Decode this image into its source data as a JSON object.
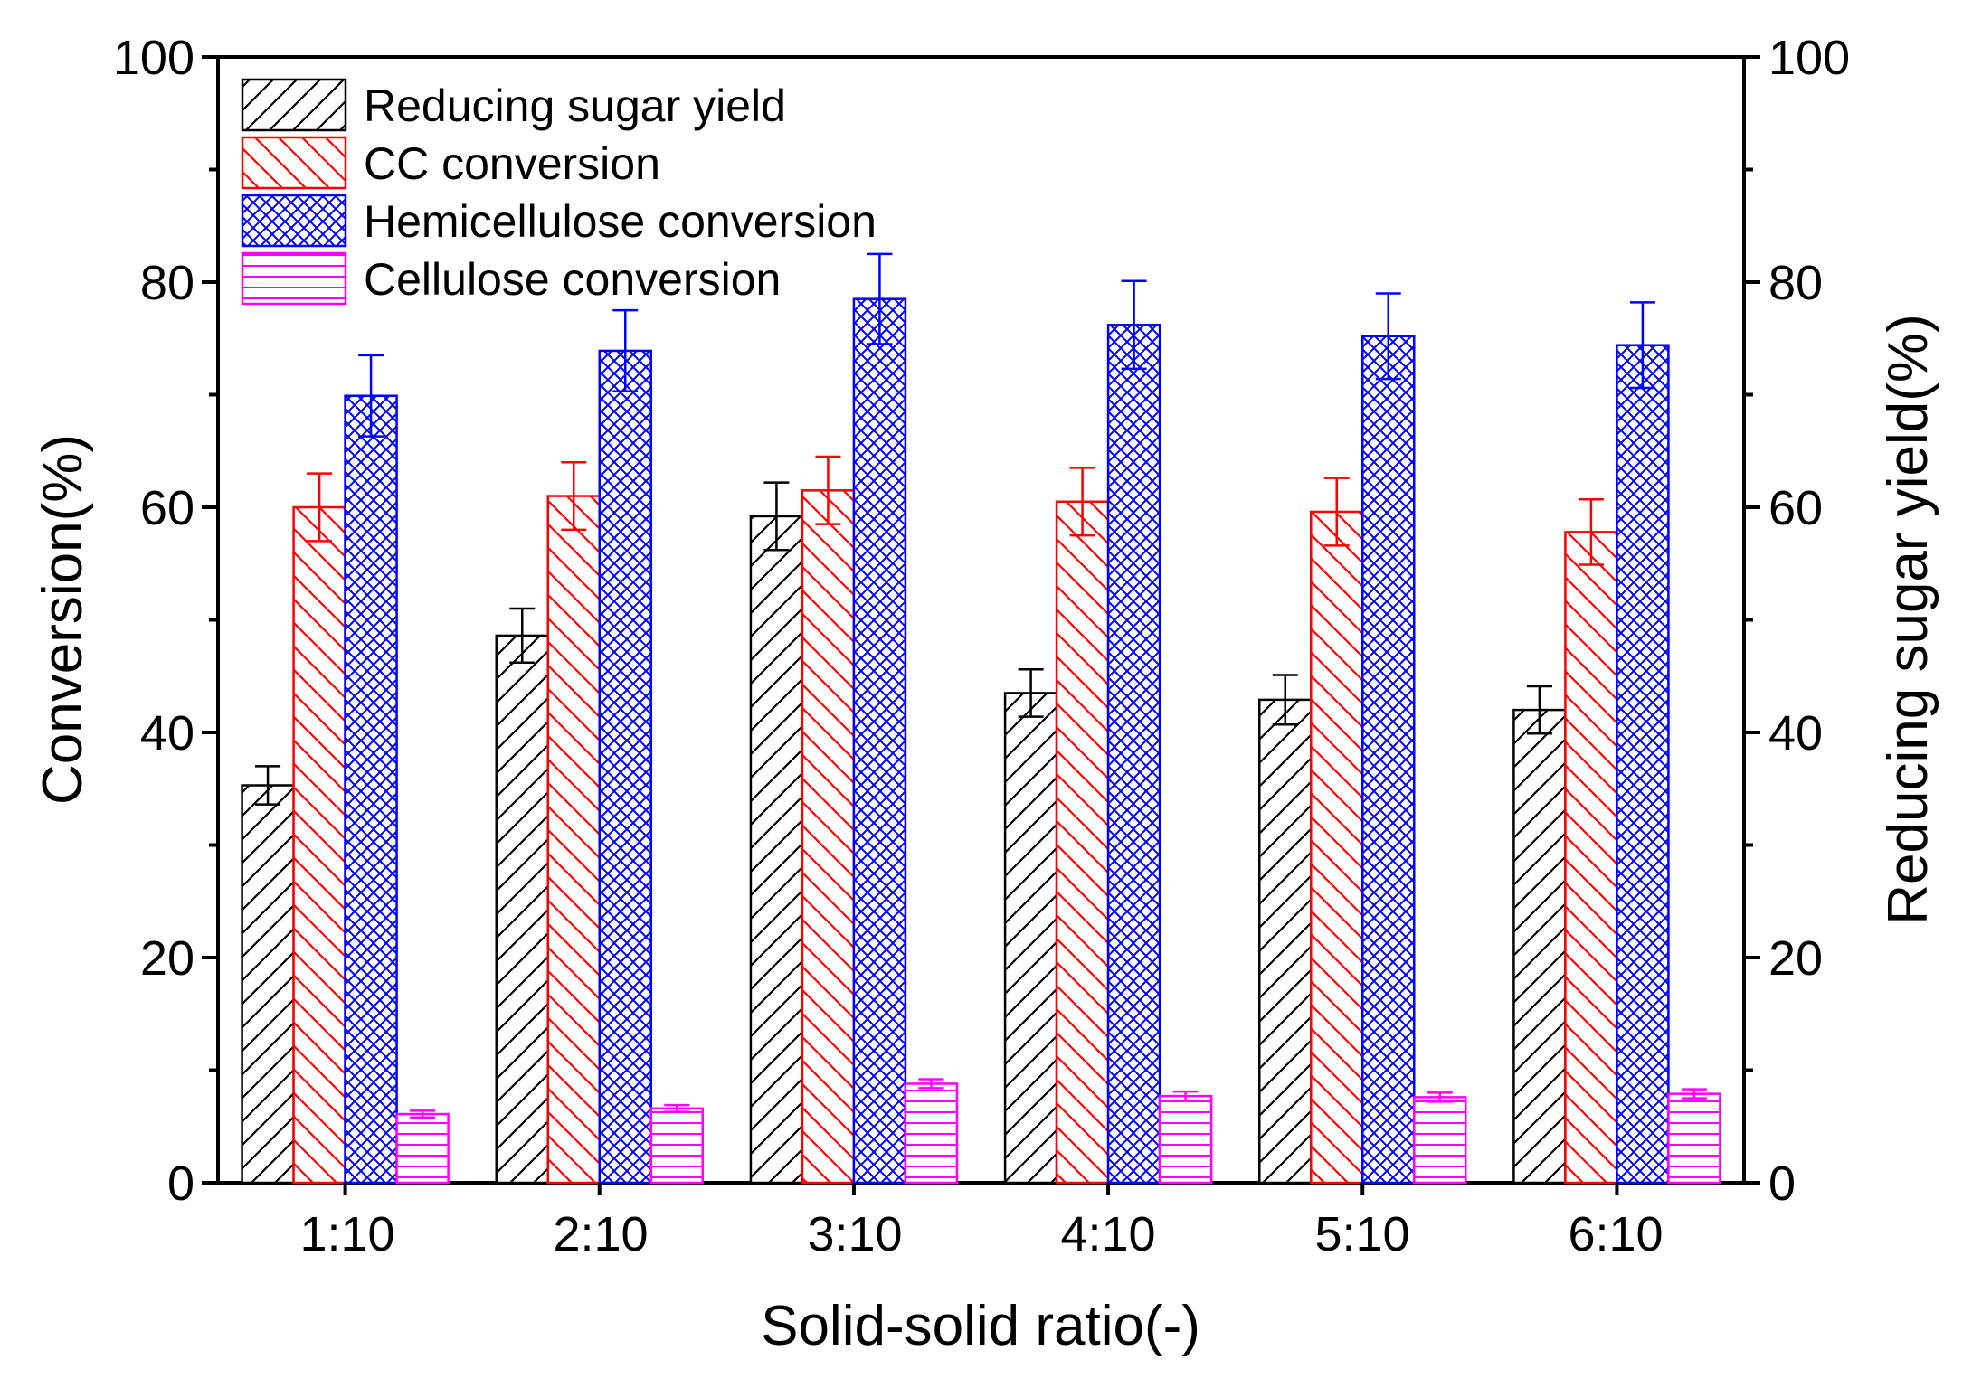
{
  "chart_data": {
    "type": "bar",
    "xlabel": "Solid-solid ratio(-)",
    "ylabel": "Conversion(%)",
    "y2label": "Reducing sugar yield(%)",
    "ylim": [
      0,
      100
    ],
    "y2lim": [
      0,
      100
    ],
    "yticks": [
      "0",
      "20",
      "40",
      "60",
      "80",
      "100"
    ],
    "y2ticks": [
      "0",
      "20",
      "40",
      "60",
      "80",
      "100"
    ],
    "legend_position": "top-left",
    "categories": [
      "1:10",
      "2:10",
      "3:10",
      "4:10",
      "5:10",
      "6:10"
    ],
    "series": [
      {
        "name": "Reducing sugar yield",
        "axis": "right",
        "color": "#000000",
        "pattern": "diagonal-forward",
        "values": [
          35.3,
          48.6,
          59.2,
          43.5,
          42.9,
          42.0
        ],
        "errors": [
          1.7,
          2.4,
          3.0,
          2.1,
          2.2,
          2.1
        ]
      },
      {
        "name": "CC conversion",
        "axis": "left",
        "color": "#ff0000",
        "pattern": "diagonal-backward",
        "values": [
          60.0,
          61.0,
          61.5,
          60.5,
          59.6,
          57.8
        ],
        "errors": [
          3.0,
          3.0,
          3.0,
          3.0,
          3.0,
          2.9
        ]
      },
      {
        "name": "Hemicellulose conversion",
        "axis": "left",
        "color": "#0000ff",
        "pattern": "crosshatch",
        "values": [
          69.9,
          73.9,
          78.5,
          76.2,
          75.2,
          74.4
        ],
        "errors": [
          3.6,
          3.6,
          4.0,
          3.9,
          3.8,
          3.8
        ]
      },
      {
        "name": "Cellulose conversion",
        "axis": "left",
        "color": "#ff00ff",
        "pattern": "horizontal",
        "values": [
          6.1,
          6.6,
          8.8,
          7.7,
          7.6,
          7.9
        ],
        "errors": [
          0.3,
          0.3,
          0.4,
          0.4,
          0.4,
          0.4
        ]
      }
    ]
  }
}
